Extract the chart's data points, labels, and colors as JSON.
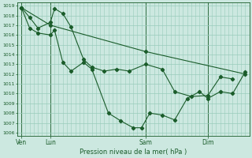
{
  "title": "Pression niveau de la mer( hPa )",
  "ylim": [
    1006,
    1019
  ],
  "yticks": [
    1006,
    1007,
    1008,
    1009,
    1010,
    1011,
    1012,
    1013,
    1014,
    1015,
    1016,
    1017,
    1018,
    1019
  ],
  "xlim": [
    0,
    56
  ],
  "xtick_positions": [
    1,
    8,
    31,
    46
  ],
  "xtick_labels": [
    "Ven",
    "Lun",
    "Sam",
    "Dim"
  ],
  "vline_positions": [
    1,
    8,
    31,
    46
  ],
  "bg_color": "#cce8e0",
  "grid_color": "#99ccbb",
  "line_color": "#1a5c2a",
  "series1_x": [
    1,
    3,
    5,
    8,
    9,
    11,
    13,
    16,
    18,
    21,
    24,
    27,
    31,
    35,
    38,
    42,
    46,
    49,
    52
  ],
  "series1_y": [
    1018.8,
    1017.8,
    1016.7,
    1017.3,
    1018.7,
    1018.2,
    1016.8,
    1013.5,
    1012.7,
    1012.3,
    1012.5,
    1012.3,
    1013.0,
    1012.5,
    1010.2,
    1009.7,
    1009.8,
    1011.7,
    1011.5
  ],
  "series2_x": [
    1,
    3,
    5,
    8,
    9,
    11,
    13,
    16,
    18,
    22,
    25,
    28,
    30,
    32,
    35,
    38,
    41,
    44,
    46,
    49,
    52,
    55
  ],
  "series2_y": [
    1018.8,
    1016.7,
    1016.2,
    1016.0,
    1016.5,
    1013.2,
    1012.3,
    1013.2,
    1012.5,
    1008.0,
    1007.2,
    1006.5,
    1006.5,
    1008.0,
    1007.8,
    1007.3,
    1009.5,
    1010.2,
    1009.5,
    1010.2,
    1010.0,
    1012.2
  ],
  "series3_x": [
    1,
    8,
    31,
    55
  ],
  "series3_y": [
    1018.8,
    1017.0,
    1014.3,
    1012.0
  ]
}
